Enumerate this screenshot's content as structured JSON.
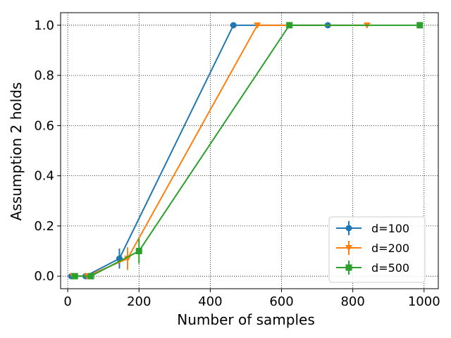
{
  "chart_data": {
    "type": "line",
    "title": "",
    "xlabel": "Number of samples",
    "ylabel": "Assumption 2 holds",
    "xlim": [
      -20,
      1040
    ],
    "ylim": [
      -0.05,
      1.05
    ],
    "xticks": [
      0,
      200,
      400,
      600,
      800,
      1000
    ],
    "yticks": [
      0.0,
      0.2,
      0.4,
      0.6,
      0.8,
      1.0
    ],
    "xtick_labels": [
      "0",
      "200",
      "400",
      "600",
      "800",
      "1000"
    ],
    "ytick_labels": [
      "0.0",
      "0.2",
      "0.4",
      "0.6",
      "0.8",
      "1.0"
    ],
    "grid": true,
    "grid_style": "dotted",
    "legend_position": "bottom-right",
    "series": [
      {
        "name": "d=100",
        "color": "#1f77b4",
        "marker": "circle",
        "x": [
          10,
          50,
          145,
          465,
          730
        ],
        "y": [
          0.0,
          0.0,
          0.07,
          1.0,
          1.0
        ],
        "yerr": [
          0.0,
          0.0,
          0.04,
          0.0,
          0.0
        ]
      },
      {
        "name": "d=200",
        "color": "#ff7f0e",
        "marker": "triangle-down",
        "x": [
          15,
          55,
          168,
          532,
          840
        ],
        "y": [
          0.0,
          0.0,
          0.07,
          1.0,
          1.0
        ],
        "yerr": [
          0.0,
          0.0,
          0.045,
          0.0,
          0.0
        ]
      },
      {
        "name": "d=500",
        "color": "#2ca02c",
        "marker": "square",
        "x": [
          20,
          65,
          200,
          622,
          988
        ],
        "y": [
          0.0,
          0.0,
          0.1,
          1.0,
          1.0
        ],
        "yerr": [
          0.0,
          0.0,
          0.05,
          0.0,
          0.0
        ]
      }
    ]
  }
}
